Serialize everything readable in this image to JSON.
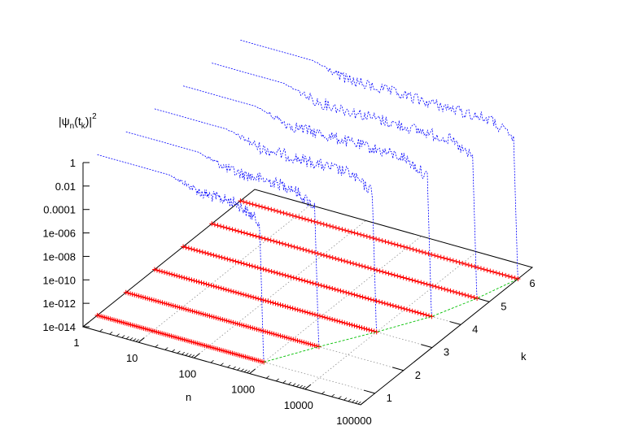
{
  "chart_data": {
    "type": "scatter",
    "title": "",
    "zlabel": {
      "prefix": "|ψ",
      "sub_n": "n",
      "mid": "(t",
      "sub_k": "k",
      "suffix": ")|",
      "sup": "2"
    },
    "xlabel": "n",
    "ylabel": "k",
    "x_scale": "log",
    "xlim": [
      1,
      100000
    ],
    "x_ticks": [
      "1",
      "10",
      "100",
      "1000",
      "10000",
      "100000"
    ],
    "ylim": [
      0.5,
      6.5
    ],
    "y_ticks": [
      "1",
      "2",
      "3",
      "4",
      "5",
      "6"
    ],
    "z_scale": "log",
    "zlim": [
      1e-14,
      1
    ],
    "z_ticks": [
      "1",
      "0.01",
      "0.0001",
      "1e-006",
      "1e-008",
      "1e-010",
      "1e-012",
      "1e-014"
    ],
    "grid": true,
    "series": [
      {
        "type": "impulses-scatter",
        "marker": "+",
        "color": "#ff0000",
        "k": [
          1,
          2,
          3,
          4,
          5,
          6
        ],
        "n_max": [
          1000,
          3000,
          10000,
          30000,
          60000,
          100000
        ]
      },
      {
        "type": "line",
        "style": "dashed",
        "color": "#0000ff",
        "k": [
          1,
          2,
          3,
          4,
          5,
          6
        ],
        "plateau_log10": -0.3,
        "noise_start": 20,
        "dropoff_n": [
          1000,
          3000,
          10000,
          30000,
          60000,
          100000
        ]
      },
      {
        "type": "line",
        "style": "dashed",
        "color": "#00c000",
        "points": [
          [
            1000,
            1
          ],
          [
            3000,
            2
          ],
          [
            10000,
            3
          ],
          [
            30000,
            4
          ],
          [
            60000,
            5
          ],
          [
            100000,
            6
          ]
        ]
      }
    ]
  }
}
